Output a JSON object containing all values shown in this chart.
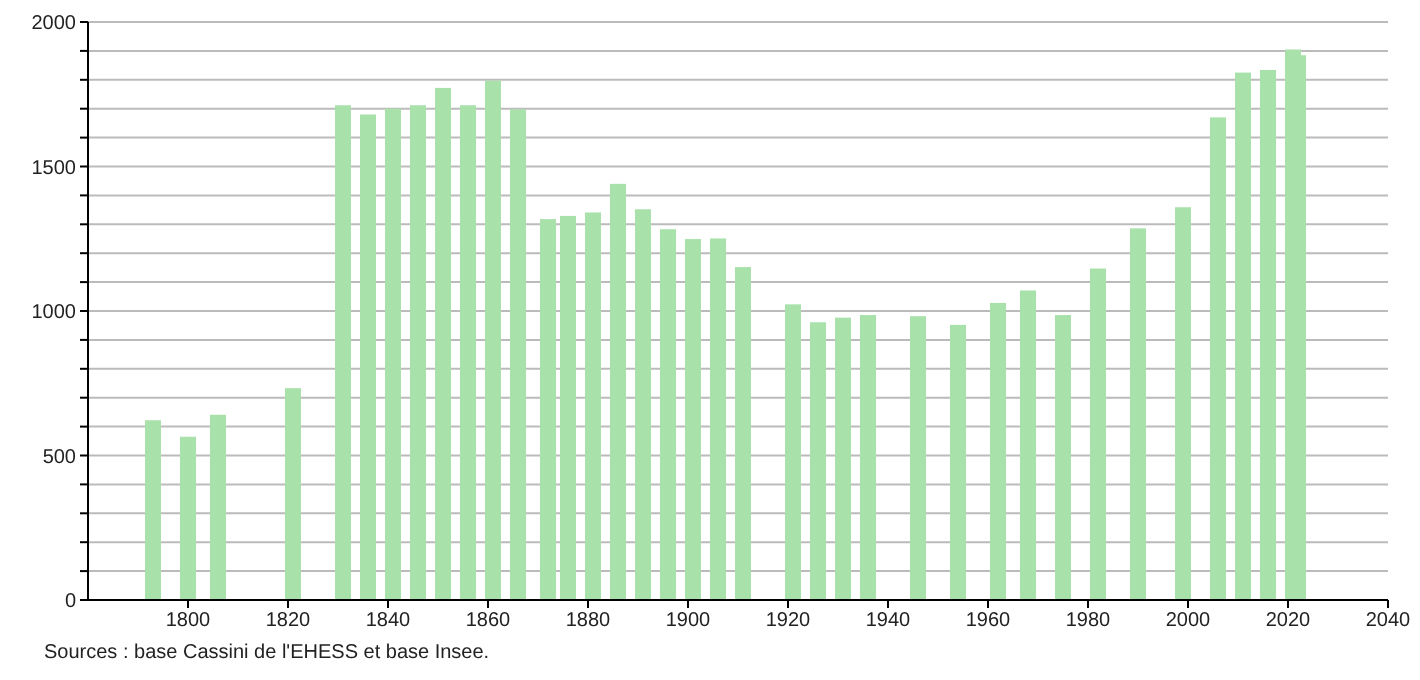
{
  "chart_data": {
    "type": "bar",
    "x": [
      1793,
      1800,
      1806,
      1821,
      1831,
      1836,
      1841,
      1846,
      1851,
      1856,
      1861,
      1866,
      1872,
      1876,
      1881,
      1886,
      1891,
      1896,
      1901,
      1906,
      1911,
      1921,
      1926,
      1931,
      1936,
      1946,
      1954,
      1962,
      1968,
      1975,
      1982,
      1990,
      1999,
      2006,
      2011,
      2016,
      2021,
      2022
    ],
    "values": [
      622,
      565,
      641,
      733,
      1712,
      1680,
      1700,
      1712,
      1772,
      1712,
      1797,
      1698,
      1318,
      1329,
      1341,
      1440,
      1352,
      1283,
      1249,
      1251,
      1152,
      1023,
      961,
      977,
      986,
      982,
      952,
      1028,
      1071,
      986,
      1147,
      1286,
      1359,
      1670,
      1825,
      1834,
      1905,
      1885
    ],
    "color": "#a8e2aa",
    "xlim": [
      1780,
      2040
    ],
    "xticks": [
      1800,
      1820,
      1840,
      1860,
      1880,
      1900,
      1920,
      1940,
      1960,
      1980,
      2000,
      2020,
      2040
    ],
    "ylim": [
      0,
      2000
    ],
    "yticks": [
      0,
      {
        "value": 100,
        "label": null
      },
      {
        "value": 200,
        "label": null
      },
      {
        "value": 300,
        "label": null
      },
      {
        "value": 400,
        "label": null
      },
      500,
      {
        "value": 600,
        "label": null
      },
      {
        "value": 700,
        "label": null
      },
      {
        "value": 800,
        "label": null
      },
      {
        "value": 900,
        "label": null
      },
      1000,
      {
        "value": 1100,
        "label": null
      },
      {
        "value": 1200,
        "label": null
      },
      {
        "value": 1300,
        "label": null
      },
      {
        "value": 1400,
        "label": null
      },
      1500,
      {
        "value": 1600,
        "label": null
      },
      {
        "value": 1700,
        "label": null
      },
      {
        "value": 1800,
        "label": null
      },
      {
        "value": 1900,
        "label": null
      },
      2000
    ],
    "grid": "y",
    "annotations": [
      "Sources : base Cassini de l'EHESS et base Insee."
    ]
  }
}
